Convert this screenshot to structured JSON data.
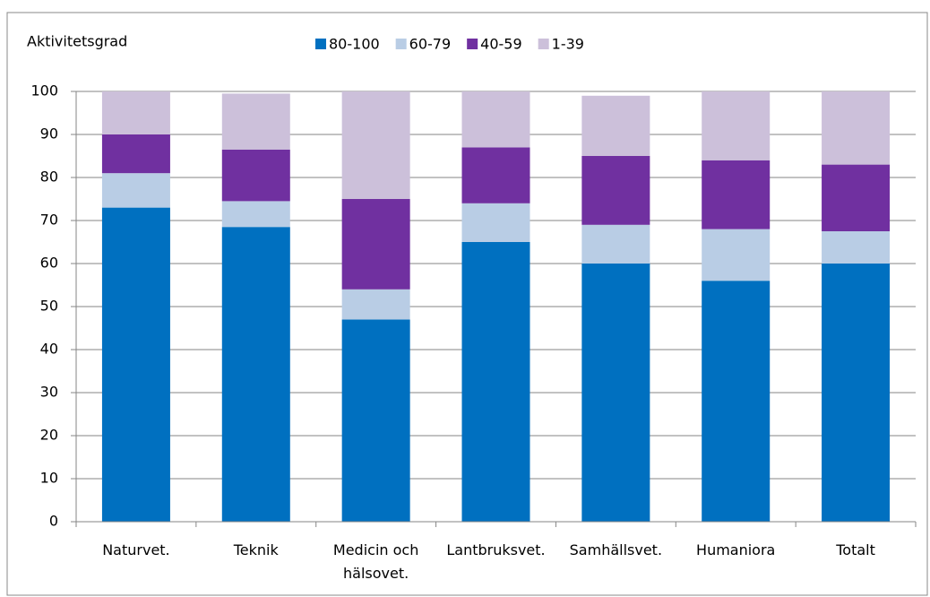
{
  "chart_data": {
    "type": "stacked_bar",
    "y_axis_label": "Aktivitetsgrad",
    "categories": [
      "Naturvet.",
      "Teknik",
      "Medicin och hälsovet.",
      "Lantbruksvet.",
      "Samhällsvet.",
      "Humaniora",
      "Totalt"
    ],
    "series": [
      {
        "name": "80-100",
        "color": "#0070c0",
        "values": [
          73,
          68.5,
          47,
          65,
          60,
          56,
          60
        ]
      },
      {
        "name": "60-79",
        "color": "#b9cde5",
        "values": [
          8,
          6,
          7,
          9,
          9,
          12,
          7.5
        ]
      },
      {
        "name": "40-59",
        "color": "#7030a0",
        "values": [
          9,
          12,
          21,
          13,
          16,
          16,
          15.5
        ]
      },
      {
        "name": "1-39",
        "color": "#ccc0da",
        "values": [
          10,
          13,
          25,
          13,
          14,
          16,
          17
        ]
      }
    ],
    "ylim": [
      0,
      100
    ],
    "yticks": [
      0,
      10,
      20,
      30,
      40,
      50,
      60,
      70,
      80,
      90,
      100
    ],
    "grid": true,
    "legend": "top"
  }
}
